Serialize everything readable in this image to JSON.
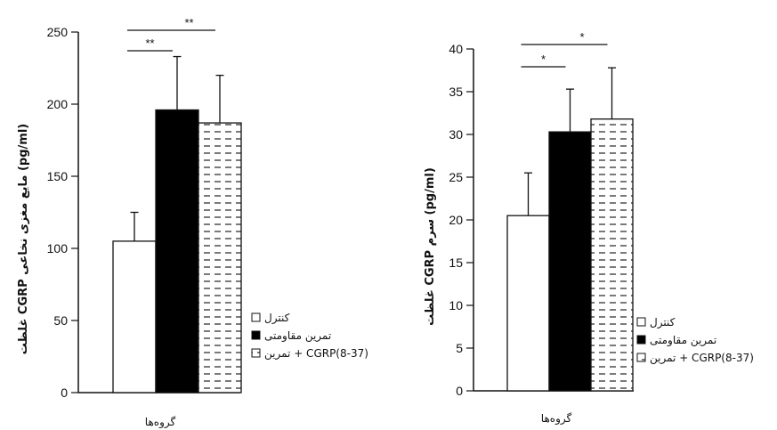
{
  "chart_data": [
    {
      "type": "bar",
      "categories": [
        "کنترل",
        "تمرین مقاومتی",
        "تمرین + CGRP(8-37)"
      ],
      "values": [
        105,
        196,
        187
      ],
      "errors": [
        20,
        37,
        33
      ],
      "ylabel": "غلظت CGRP مایع مغزی نخاعی (pg/ml)",
      "xlabel": "گروه‌ها",
      "ylim": [
        0,
        250
      ],
      "yticks": [
        0,
        50,
        100,
        150,
        200,
        250
      ],
      "legend_position": "bottom-right",
      "significance": [
        {
          "label": "**",
          "from": 0,
          "to": 1
        },
        {
          "label": "**",
          "from": 0,
          "to": 2
        }
      ],
      "grid": false
    },
    {
      "type": "bar",
      "categories": [
        "کنترل",
        "تمرین مقاومتی",
        "تمرین + CGRP(8-37)"
      ],
      "values": [
        20.5,
        30.3,
        31.8
      ],
      "errors": [
        5.0,
        5.0,
        6.0
      ],
      "ylabel": "غلظت CGRP سرم (pg/ml)",
      "xlabel": "گروه‌ها",
      "ylim": [
        0,
        40
      ],
      "yticks": [
        0,
        5,
        10,
        15,
        20,
        25,
        30,
        35,
        40
      ],
      "legend_position": "bottom-right",
      "significance": [
        {
          "label": "*",
          "from": 0,
          "to": 1
        },
        {
          "label": "*",
          "from": 0,
          "to": 2
        }
      ],
      "grid": false
    }
  ],
  "colors": {
    "control": "#ffffff",
    "exercise": "#000000",
    "antagonist": "dashed-pattern",
    "axis": "#111111"
  }
}
